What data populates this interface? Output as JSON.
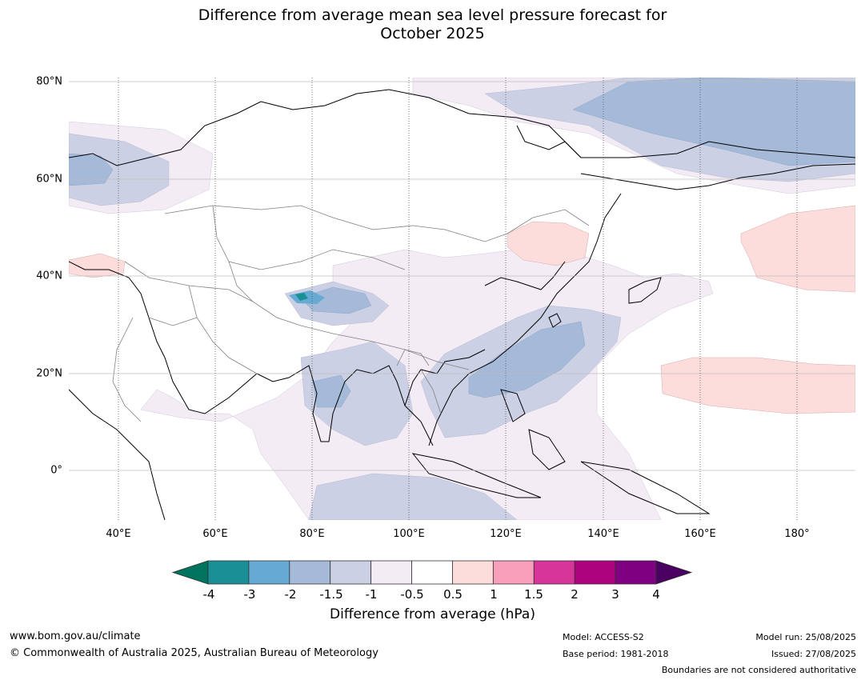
{
  "title_line1": "Difference from average mean sea level pressure forecast for",
  "title_line2": "October 2025",
  "lat_labels": [
    "80°N",
    "60°N",
    "40°N",
    "20°N",
    "0°"
  ],
  "lon_labels": [
    "40°E",
    "60°E",
    "80°E",
    "100°E",
    "120°E",
    "140°E",
    "160°E",
    "180°"
  ],
  "colorbar": {
    "ticks": [
      "-4",
      "-3",
      "-2",
      "-1.5",
      "-1",
      "-0.5",
      "0.5",
      "1",
      "1.5",
      "2",
      "3",
      "4"
    ],
    "colors": [
      "#1a9096",
      "#66aad4",
      "#a5b9d8",
      "#ccd0e4",
      "#f3ecf5",
      "#ffffff",
      "#fddcdc",
      "#f8a0bb",
      "#d8359a",
      "#ae037e",
      "#7f0080"
    ],
    "under_color": "#00735f",
    "over_color": "#490061",
    "label": "Difference from average (hPa)"
  },
  "footer": {
    "url": "www.bom.gov.au/climate",
    "copyright": "© Commonwealth of Australia 2025, Australian Bureau of Meteorology",
    "model": "Model: ACCESS-S2",
    "base_period": "Base period: 1981-2018",
    "model_run": "Model run: 25/08/2025",
    "issued": "Issued: 27/08/2025",
    "disclaimer": "Boundaries are not considered authoritative"
  }
}
